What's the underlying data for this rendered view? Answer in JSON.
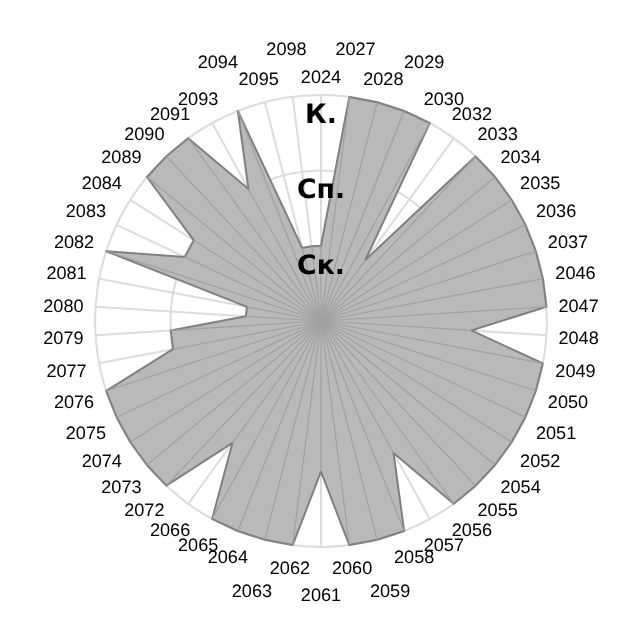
{
  "chart_data": {
    "type": "radar",
    "categories": [
      "2024",
      "2027",
      "2028",
      "2029",
      "2030",
      "2032",
      "2033",
      "2034",
      "2035",
      "2036",
      "2037",
      "2046",
      "2047",
      "2048",
      "2049",
      "2050",
      "2051",
      "2052",
      "2054",
      "2055",
      "2056",
      "2057",
      "2058",
      "2059",
      "2060",
      "2061",
      "2062",
      "2063",
      "2064",
      "2065",
      "2066",
      "2072",
      "2073",
      "2074",
      "2075",
      "2076",
      "2077",
      "2079",
      "2080",
      "2081",
      "2082",
      "2083",
      "2084",
      "2089",
      "2090",
      "2091",
      "2093",
      "2094",
      "2095",
      "2098"
    ],
    "series": [
      {
        "color": "#b9b9b9",
        "values": [
          1,
          3,
          3,
          3,
          3,
          1,
          3,
          3,
          3,
          3,
          3,
          3,
          3,
          2,
          3,
          3,
          3,
          3,
          3,
          3,
          3,
          2,
          3,
          3,
          3,
          2,
          3,
          3,
          3,
          3,
          2,
          3,
          3,
          3,
          3,
          3,
          2,
          2,
          1,
          1,
          3,
          2,
          2,
          3,
          3,
          3,
          2,
          3,
          1,
          1
        ]
      }
    ],
    "ylim": [
      0,
      3
    ],
    "yticks": [
      {
        "value": 1,
        "label": "Ск."
      },
      {
        "value": 2,
        "label": "Сп."
      },
      {
        "value": 3,
        "label": "К."
      }
    ],
    "grid": true
  }
}
